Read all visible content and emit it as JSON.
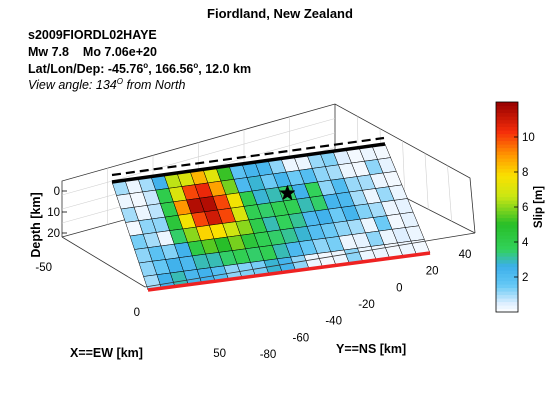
{
  "header": {
    "title": "Fiordland, New Zealand",
    "event": "s2009FIORDL02HAYE",
    "mw": "Mw 7.8",
    "mo": "Mo 7.06e+20",
    "loc_prefix": "Lat/Lon/Dep: -45.76",
    "lat_unit": "o",
    "lon_value": ", 166.56",
    "lon_unit": "o",
    "dep_value": ", 12.0 km",
    "view_prefix": "View angle: 134",
    "view_unit": "O",
    "view_suffix": " from North"
  },
  "colors": {
    "trace_line": "#000000",
    "bottom_edge": "#ee2222",
    "grid_line": "#d0d0d0",
    "box_line": "#333333"
  },
  "chart_data": {
    "type": "heatmap",
    "title": "Fiordland, New Zealand",
    "xlabel": "X==EW [km]",
    "ylabel": "Y==NS [km]",
    "zlabel": "Depth [km]",
    "x_ticks": [
      "-50",
      "0",
      "50"
    ],
    "y_ticks": [
      "-80",
      "-60",
      "-40",
      "-20",
      "0",
      "20",
      "40"
    ],
    "z_ticks": [
      "0",
      "10",
      "20"
    ],
    "colorbar": {
      "label": "Slip [m]",
      "range": [
        0,
        12
      ],
      "ticks": [
        "2",
        "4",
        "6",
        "8",
        "10"
      ]
    },
    "grid": true,
    "fault_rows": 8,
    "fault_cols": 21,
    "slip": [
      [
        1.0,
        0.3,
        1.0,
        2.5,
        6.5,
        7.0,
        8.5,
        7.2,
        5.2,
        1.8,
        2.4,
        2.3,
        1.2,
        0.3,
        0.3,
        1.1,
        1.3,
        0.5,
        0.2,
        0.3,
        0.2
      ],
      [
        0.3,
        0.2,
        0.7,
        4.0,
        7.0,
        10.0,
        10.5,
        8.8,
        5.8,
        2.2,
        2.8,
        1.5,
        2.4,
        1.5,
        2.0,
        1.2,
        1.0,
        0.3,
        0.2,
        1.2,
        0.4
      ],
      [
        1.0,
        0.3,
        0.8,
        4.0,
        9.0,
        11.5,
        11.5,
        10.0,
        7.6,
        4.0,
        2.8,
        3.0,
        3.5,
        2.5,
        3.6,
        1.2,
        2.1,
        1.1,
        1.0,
        0.3,
        0.2
      ],
      [
        0.2,
        1.2,
        1.2,
        4.5,
        7.6,
        10.0,
        11.0,
        10.0,
        7.0,
        3.8,
        3.5,
        3.8,
        3.8,
        3.0,
        3.5,
        2.4,
        2.2,
        1.0,
        0.3,
        1.1,
        0.3
      ],
      [
        1.4,
        1.0,
        0.3,
        3.5,
        6.0,
        8.0,
        7.8,
        6.8,
        6.0,
        4.0,
        3.0,
        3.6,
        3.2,
        2.2,
        2.5,
        1.5,
        2.4,
        1.3,
        1.0,
        0.3,
        0.4
      ],
      [
        1.2,
        1.8,
        1.3,
        2.5,
        4.2,
        5.5,
        5.0,
        5.8,
        4.5,
        3.8,
        3.5,
        3.2,
        2.8,
        2.0,
        1.5,
        1.2,
        1.0,
        0.3,
        1.5,
        0.2,
        0.4
      ],
      [
        1.2,
        1.6,
        2.5,
        2.2,
        3.0,
        3.0,
        3.5,
        3.8,
        3.5,
        3.8,
        3.0,
        2.2,
        1.6,
        1.2,
        1.4,
        0.3,
        0.4,
        1.2,
        0.3,
        0.5,
        0.3
      ],
      [
        1.0,
        2.5,
        3.0,
        2.3,
        2.5,
        2.0,
        1.2,
        1.3,
        1.4,
        2.8,
        2.4,
        1.2,
        0.3,
        0.2,
        0.3,
        1.2,
        0.3,
        0.3,
        0.2,
        0.3,
        0.2
      ]
    ],
    "hypocenter": {
      "row": 2,
      "col": 12
    }
  }
}
